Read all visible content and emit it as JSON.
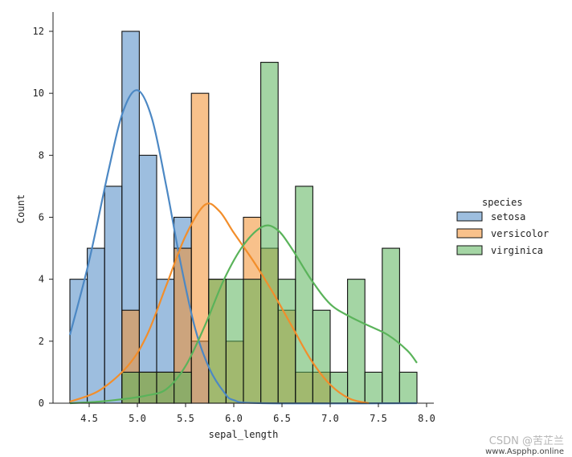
{
  "chart_data": {
    "type": "histogram",
    "xlabel": "sepal_length",
    "ylabel": "Count",
    "xlim": [
      4.3,
      7.9
    ],
    "ylim": [
      0,
      12.6
    ],
    "xticks": [
      {
        "value": 4.5,
        "label": "4.5"
      },
      {
        "value": 5.0,
        "label": "5.0"
      },
      {
        "value": 5.5,
        "label": "5.5"
      },
      {
        "value": 6.0,
        "label": "6.0"
      },
      {
        "value": 6.5,
        "label": "6.5"
      },
      {
        "value": 7.0,
        "label": "7.0"
      },
      {
        "value": 7.5,
        "label": "7.5"
      },
      {
        "value": 8.0,
        "label": "8.0"
      }
    ],
    "yticks": [
      {
        "value": 0,
        "label": "0"
      },
      {
        "value": 2,
        "label": "2"
      },
      {
        "value": 4,
        "label": "4"
      },
      {
        "value": 6,
        "label": "6"
      },
      {
        "value": 8,
        "label": "8"
      },
      {
        "value": 10,
        "label": "10"
      },
      {
        "value": 12,
        "label": "12"
      }
    ],
    "bin_edges": [
      4.3,
      4.48,
      4.66,
      4.84,
      5.02,
      5.2,
      5.38,
      5.56,
      5.74,
      5.92,
      6.1,
      6.28,
      6.46,
      6.64,
      6.82,
      7.0,
      7.18,
      7.36,
      7.54,
      7.72,
      7.9
    ],
    "legend": {
      "title": "species",
      "position": "right"
    },
    "series": [
      {
        "name": "setosa",
        "color": "#4c88c4",
        "counts": [
          4,
          5,
          7,
          12,
          8,
          4,
          6,
          2,
          0,
          0,
          0,
          0,
          0,
          0,
          0,
          0,
          0,
          0,
          0,
          0
        ],
        "kde": [
          [
            4.3,
            2.2
          ],
          [
            4.5,
            4.6
          ],
          [
            4.7,
            7.5
          ],
          [
            4.85,
            9.4
          ],
          [
            5.0,
            10.1
          ],
          [
            5.15,
            9.2
          ],
          [
            5.3,
            7.0
          ],
          [
            5.45,
            4.5
          ],
          [
            5.6,
            2.4
          ],
          [
            5.75,
            1.1
          ],
          [
            5.9,
            0.35
          ],
          [
            6.0,
            0.1
          ],
          [
            6.3,
            0.0
          ],
          [
            7.9,
            0.0
          ]
        ]
      },
      {
        "name": "versicolor",
        "color": "#f28e2b",
        "counts": [
          0,
          0,
          0,
          3,
          1,
          1,
          5,
          10,
          4,
          2,
          6,
          5,
          3,
          1,
          1,
          0,
          0,
          0,
          0,
          0
        ],
        "kde": [
          [
            4.3,
            0.05
          ],
          [
            4.6,
            0.4
          ],
          [
            4.9,
            1.2
          ],
          [
            5.1,
            2.2
          ],
          [
            5.3,
            3.8
          ],
          [
            5.5,
            5.4
          ],
          [
            5.7,
            6.4
          ],
          [
            5.85,
            6.2
          ],
          [
            6.0,
            5.5
          ],
          [
            6.2,
            4.6
          ],
          [
            6.4,
            3.6
          ],
          [
            6.6,
            2.5
          ],
          [
            6.8,
            1.4
          ],
          [
            7.0,
            0.6
          ],
          [
            7.2,
            0.15
          ],
          [
            7.4,
            0.0
          ]
        ]
      },
      {
        "name": "virginica",
        "color": "#5ab35a",
        "counts": [
          0,
          0,
          0,
          1,
          1,
          1,
          1,
          0,
          4,
          4,
          4,
          11,
          4,
          7,
          3,
          1,
          4,
          1,
          5,
          1
        ],
        "kde": [
          [
            4.3,
            0.0
          ],
          [
            4.6,
            0.05
          ],
          [
            4.9,
            0.15
          ],
          [
            5.1,
            0.25
          ],
          [
            5.3,
            0.45
          ],
          [
            5.5,
            1.2
          ],
          [
            5.7,
            2.5
          ],
          [
            5.9,
            4.0
          ],
          [
            6.1,
            5.1
          ],
          [
            6.3,
            5.7
          ],
          [
            6.45,
            5.6
          ],
          [
            6.6,
            5.0
          ],
          [
            6.8,
            4.0
          ],
          [
            7.0,
            3.2
          ],
          [
            7.2,
            2.8
          ],
          [
            7.4,
            2.5
          ],
          [
            7.6,
            2.2
          ],
          [
            7.8,
            1.7
          ],
          [
            7.9,
            1.3
          ]
        ]
      }
    ]
  },
  "watermark": {
    "line1": "CSDN @苦芷兰",
    "line2": "www.Aspphp.online"
  }
}
